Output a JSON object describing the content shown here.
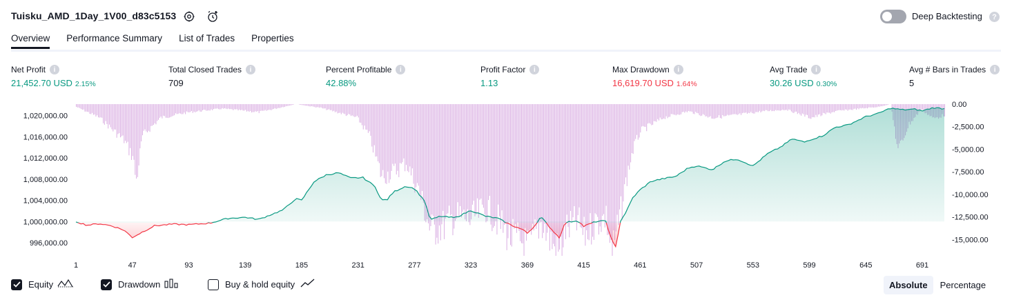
{
  "header": {
    "strategy_name": "Tuisku_AMD_1Day_1V00_d83c5153",
    "settings_icon": "gear-icon",
    "alert_icon": "add-alert-icon",
    "deep_backtesting_label": "Deep Backtesting",
    "deep_backtesting_enabled": false,
    "help_icon": "question-icon"
  },
  "tabs": [
    {
      "label": "Overview",
      "active": true
    },
    {
      "label": "Performance Summary",
      "active": false
    },
    {
      "label": "List of Trades",
      "active": false
    },
    {
      "label": "Properties",
      "active": false
    }
  ],
  "metrics": {
    "net_profit": {
      "label": "Net Profit",
      "value": "21,452.70 USD",
      "pct": "2.15%"
    },
    "total_closed_trades": {
      "label": "Total Closed Trades",
      "value": "709"
    },
    "percent_profitable": {
      "label": "Percent Profitable",
      "value": "42.88%"
    },
    "profit_factor": {
      "label": "Profit Factor",
      "value": "1.13"
    },
    "max_drawdown": {
      "label": "Max Drawdown",
      "value": "16,619.70 USD",
      "pct": "1.64%"
    },
    "avg_trade": {
      "label": "Avg Trade",
      "value": "30.26 USD",
      "pct": "0.30%"
    },
    "avg_bars_in_trades": {
      "label": "Avg # Bars in Trades",
      "value": "5"
    }
  },
  "chart_data": {
    "type": "area",
    "x_ticks": [
      "1",
      "47",
      "93",
      "139",
      "185",
      "231",
      "277",
      "323",
      "369",
      "415",
      "461",
      "507",
      "553",
      "599",
      "645",
      "691"
    ],
    "x_range": [
      1,
      709
    ],
    "y_left_ticks": [
      "1,020,000.00",
      "1,016,000.00",
      "1,012,000.00",
      "1,008,000.00",
      "1,004,000.00",
      "1,000,000.00",
      "996,000.00"
    ],
    "y_left_range": [
      993400,
      1022300
    ],
    "y_right_ticks": [
      "0.00",
      "-2,500.00",
      "-5,000.00",
      "-7,500.00",
      "-10,000.00",
      "-12,500.00",
      "-15,000.00"
    ],
    "y_right_range": [
      -16800,
      0
    ],
    "baseline": 1000000,
    "series": [
      {
        "kind": "equity",
        "points": [
          [
            1,
            1000000
          ],
          [
            10,
            999300
          ],
          [
            20,
            999600
          ],
          [
            30,
            999200
          ],
          [
            40,
            998400
          ],
          [
            47,
            997000
          ],
          [
            55,
            998000
          ],
          [
            65,
            999200
          ],
          [
            80,
            999500
          ],
          [
            93,
            999400
          ],
          [
            110,
            999700
          ],
          [
            125,
            1000600
          ],
          [
            139,
            1000800
          ],
          [
            150,
            1000400
          ],
          [
            160,
            1001300
          ],
          [
            170,
            1002200
          ],
          [
            180,
            1004300
          ],
          [
            185,
            1004000
          ],
          [
            195,
            1007500
          ],
          [
            205,
            1008800
          ],
          [
            215,
            1009200
          ],
          [
            225,
            1008200
          ],
          [
            235,
            1008300
          ],
          [
            245,
            1006600
          ],
          [
            250,
            1004000
          ],
          [
            255,
            1004200
          ],
          [
            260,
            1005600
          ],
          [
            270,
            1006700
          ],
          [
            277,
            1006200
          ],
          [
            285,
            1004000
          ],
          [
            290,
            1000300
          ],
          [
            298,
            1001000
          ],
          [
            310,
            1000700
          ],
          [
            323,
            1002100
          ],
          [
            335,
            1001000
          ],
          [
            345,
            1000600
          ],
          [
            355,
            999400
          ],
          [
            365,
            998500
          ],
          [
            369,
            997800
          ],
          [
            375,
            999200
          ],
          [
            380,
            1000900
          ],
          [
            390,
            998200
          ],
          [
            395,
            997000
          ],
          [
            400,
            999800
          ],
          [
            410,
            1000200
          ],
          [
            415,
            999100
          ],
          [
            425,
            1000000
          ],
          [
            433,
            1000100
          ],
          [
            438,
            996300
          ],
          [
            441,
            995200
          ],
          [
            445,
            1000100
          ],
          [
            450,
            1002000
          ],
          [
            455,
            1004500
          ],
          [
            461,
            1006000
          ],
          [
            470,
            1007600
          ],
          [
            480,
            1008100
          ],
          [
            490,
            1008500
          ],
          [
            500,
            1010100
          ],
          [
            507,
            1010500
          ],
          [
            520,
            1009800
          ],
          [
            530,
            1011400
          ],
          [
            540,
            1011800
          ],
          [
            553,
            1010500
          ],
          [
            565,
            1012800
          ],
          [
            575,
            1014000
          ],
          [
            585,
            1015600
          ],
          [
            595,
            1015000
          ],
          [
            599,
            1015400
          ],
          [
            610,
            1016200
          ],
          [
            620,
            1017800
          ],
          [
            630,
            1018200
          ],
          [
            645,
            1019800
          ],
          [
            655,
            1020400
          ],
          [
            665,
            1021400
          ],
          [
            675,
            1021100
          ],
          [
            685,
            1021200
          ],
          [
            691,
            1020900
          ],
          [
            700,
            1021500
          ],
          [
            709,
            1021300
          ]
        ]
      },
      {
        "kind": "drawdown",
        "points": [
          [
            1,
            -300
          ],
          [
            20,
            -1500
          ],
          [
            40,
            -4000
          ],
          [
            47,
            -5800
          ],
          [
            50,
            -8500
          ],
          [
            55,
            -3500
          ],
          [
            70,
            -1500
          ],
          [
            93,
            -900
          ],
          [
            120,
            -500
          ],
          [
            150,
            -900
          ],
          [
            180,
            0
          ],
          [
            200,
            -400
          ],
          [
            230,
            -1500
          ],
          [
            240,
            -3500
          ],
          [
            250,
            -8000
          ],
          [
            260,
            -7500
          ],
          [
            270,
            -6500
          ],
          [
            280,
            -9500
          ],
          [
            290,
            -14000
          ],
          [
            300,
            -13500
          ],
          [
            310,
            -12500
          ],
          [
            323,
            -12800
          ],
          [
            335,
            -11500
          ],
          [
            345,
            -13000
          ],
          [
            355,
            -14800
          ],
          [
            365,
            -15300
          ],
          [
            369,
            -16000
          ],
          [
            375,
            -14500
          ],
          [
            380,
            -13000
          ],
          [
            390,
            -15800
          ],
          [
            395,
            -16500
          ],
          [
            400,
            -14000
          ],
          [
            410,
            -13000
          ],
          [
            415,
            -14600
          ],
          [
            425,
            -13000
          ],
          [
            433,
            -12500
          ],
          [
            438,
            -16600
          ],
          [
            445,
            -12000
          ],
          [
            450,
            -8000
          ],
          [
            455,
            -5000
          ],
          [
            461,
            -3000
          ],
          [
            480,
            -1500
          ],
          [
            500,
            -800
          ],
          [
            520,
            -1500
          ],
          [
            540,
            -1200
          ],
          [
            560,
            -800
          ],
          [
            580,
            -600
          ],
          [
            600,
            -1500
          ],
          [
            620,
            -800
          ],
          [
            640,
            -500
          ],
          [
            655,
            -300
          ],
          [
            665,
            0
          ],
          [
            671,
            -5200
          ],
          [
            680,
            -2200
          ],
          [
            690,
            -600
          ],
          [
            700,
            -1600
          ],
          [
            709,
            -1200
          ]
        ]
      }
    ]
  },
  "legend": {
    "equity": {
      "label": "Equity",
      "checked": true,
      "icon": "equity-line-icon"
    },
    "drawdown": {
      "label": "Drawdown",
      "checked": true,
      "icon": "drawdown-bars-icon"
    },
    "buy_hold": {
      "label": "Buy & hold equity",
      "checked": false,
      "icon": "trend-line-icon"
    }
  },
  "view_mode": {
    "absolute_label": "Absolute",
    "percentage_label": "Percentage",
    "selected": "Absolute"
  },
  "colors": {
    "equity_up": "#089981",
    "equity_down": "#f23645",
    "drawdown_bar": "#ce93d8",
    "text": "#131722"
  }
}
